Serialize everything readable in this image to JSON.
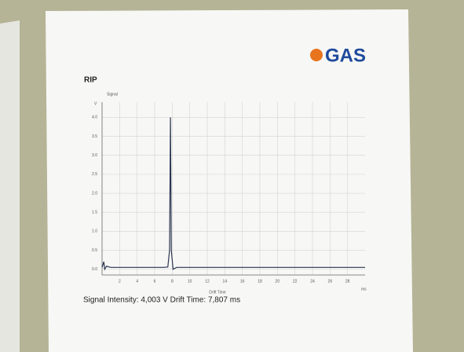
{
  "chart_data": {
    "type": "line",
    "title": "RIP",
    "logo": "GAS",
    "ylabel": "Signal",
    "y_unit": "V",
    "xlabel": "Drift Time",
    "x_unit": "ms",
    "x": [
      0,
      0.2,
      0.3,
      0.5,
      1,
      3,
      5,
      7,
      7.5,
      7.7,
      7.8,
      7.9,
      8.1,
      8.5,
      10,
      15,
      20,
      25,
      30
    ],
    "values": [
      0.05,
      0.2,
      0.0,
      0.08,
      0.05,
      0.05,
      0.05,
      0.05,
      0.06,
      0.5,
      4.0,
      0.5,
      0.0,
      0.05,
      0.05,
      0.05,
      0.05,
      0.05,
      0.05
    ],
    "color": "#2a3550",
    "xlim": [
      0,
      30
    ],
    "xticks": [
      2,
      4,
      6,
      8,
      10,
      12,
      14,
      16,
      18,
      20,
      22,
      24,
      26,
      28
    ],
    "ylim": [
      -0.15,
      4.4
    ],
    "yticks": [
      {
        "value": 0,
        "label": "0.0"
      },
      0.5,
      {
        "value": 1,
        "label": "1.0"
      },
      1.5,
      {
        "value": 2,
        "label": "2.0"
      },
      2.5,
      {
        "value": 3,
        "label": "3.0"
      },
      3.5,
      {
        "value": 4,
        "label": "4.0"
      }
    ],
    "grid": true,
    "footer": "Signal Intensity: 4,003 V  Drift Time: 7,807 ms"
  }
}
